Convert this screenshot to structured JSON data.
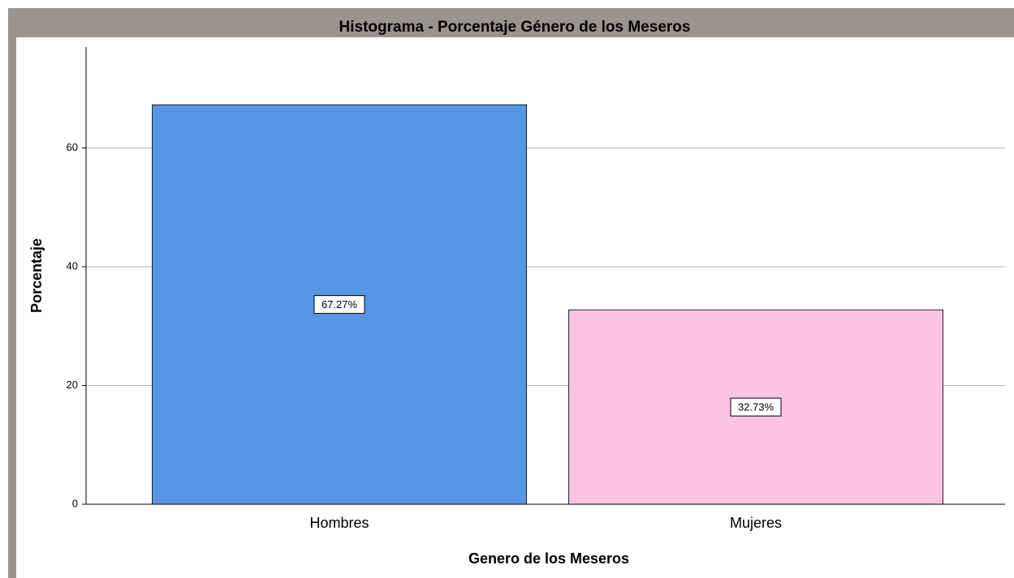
{
  "chart_data": {
    "type": "bar",
    "title": "Histograma - Porcentaje Género de los Meseros",
    "x_label": "Genero de los Meseros",
    "y_label": "Porcentaje",
    "categories": [
      "Hombres",
      "Mujeres"
    ],
    "values": [
      67.27,
      32.73
    ],
    "value_labels": [
      "67.27%",
      "32.73%"
    ],
    "colors": [
      "#5596e6",
      "#fdc3e3"
    ],
    "ylim": [
      0,
      77
    ],
    "yticks": [
      0,
      20,
      40,
      60
    ],
    "grid": true
  }
}
